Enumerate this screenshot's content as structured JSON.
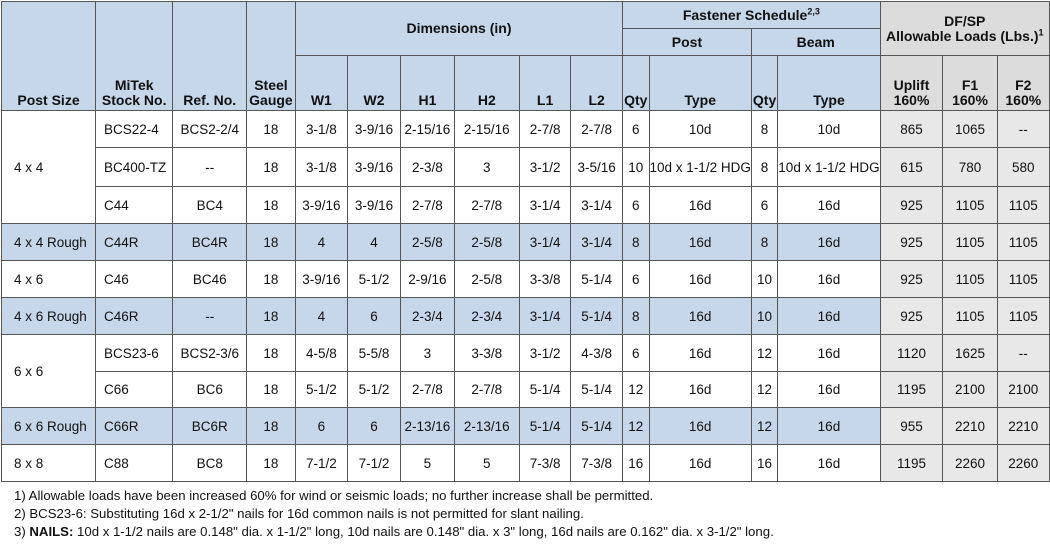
{
  "headers": {
    "post_size": "Post Size",
    "mitek_stock_line1": "MiTek",
    "mitek_stock_line2": "Stock No.",
    "ref_no": "Ref. No.",
    "steel_gauge_line1": "Steel",
    "steel_gauge_line2": "Gauge",
    "dimensions": "Dimensions (in)",
    "fastener_schedule": "Fastener Schedule",
    "fastener_schedule_sup": "2,3",
    "post": "Post",
    "beam": "Beam",
    "dfsp_line1": "DF/SP",
    "dfsp_line2": "Allowable Loads (Lbs.)",
    "dfsp_sup": "1",
    "w1": "W1",
    "w2": "W2",
    "h1": "H1",
    "h2": "H2",
    "l1": "L1",
    "l2": "L2",
    "qty": "Qty",
    "type": "Type",
    "uplift_line1": "Uplift",
    "uplift_line2": "160%",
    "f1_line1": "F1",
    "f1_line2": "160%",
    "f2_line1": "F2",
    "f2_line2": "160%"
  },
  "groups": [
    {
      "post_size": "4 x 4",
      "rows": [
        {
          "stock": "BCS22-4",
          "ref": "BCS2-2/4",
          "gauge": "18",
          "w1": "3-1/8",
          "w2": "3-9/16",
          "h1": "2-15/16",
          "h2": "2-15/16",
          "l1": "2-7/8",
          "l2": "2-7/8",
          "post_qty": "6",
          "post_type": "10d",
          "beam_qty": "8",
          "beam_type": "10d",
          "uplift": "865",
          "f1": "1065",
          "f2": "--"
        },
        {
          "stock": "BC400-TZ",
          "ref": "--",
          "gauge": "18",
          "w1": "3-1/8",
          "w2": "3-9/16",
          "h1": "2-3/8",
          "h2": "3",
          "l1": "3-1/2",
          "l2": "3-5/16",
          "post_qty": "10",
          "post_type": "10d x 1-1/2 HDG",
          "beam_qty": "8",
          "beam_type": "10d x 1-1/2 HDG",
          "uplift": "615",
          "f1": "780",
          "f2": "580"
        },
        {
          "stock": "C44",
          "ref": "BC4",
          "gauge": "18",
          "w1": "3-9/16",
          "w2": "3-9/16",
          "h1": "2-7/8",
          "h2": "2-7/8",
          "l1": "3-1/4",
          "l2": "3-1/4",
          "post_qty": "6",
          "post_type": "16d",
          "beam_qty": "6",
          "beam_type": "16d",
          "uplift": "925",
          "f1": "1105",
          "f2": "1105"
        }
      ]
    },
    {
      "post_size": "4 x 4 Rough",
      "shaded": true,
      "rows": [
        {
          "stock": "C44R",
          "ref": "BC4R",
          "gauge": "18",
          "w1": "4",
          "w2": "4",
          "h1": "2-5/8",
          "h2": "2-5/8",
          "l1": "3-1/4",
          "l2": "3-1/4",
          "post_qty": "8",
          "post_type": "16d",
          "beam_qty": "8",
          "beam_type": "16d",
          "uplift": "925",
          "f1": "1105",
          "f2": "1105"
        }
      ]
    },
    {
      "post_size": "4 x 6",
      "rows": [
        {
          "stock": "C46",
          "ref": "BC46",
          "gauge": "18",
          "w1": "3-9/16",
          "w2": "5-1/2",
          "h1": "2-9/16",
          "h2": "2-5/8",
          "l1": "3-3/8",
          "l2": "5-1/4",
          "post_qty": "6",
          "post_type": "16d",
          "beam_qty": "10",
          "beam_type": "16d",
          "uplift": "925",
          "f1": "1105",
          "f2": "1105"
        }
      ]
    },
    {
      "post_size": "4 x 6 Rough",
      "shaded": true,
      "rows": [
        {
          "stock": "C46R",
          "ref": "--",
          "gauge": "18",
          "w1": "4",
          "w2": "6",
          "h1": "2-3/4",
          "h2": "2-3/4",
          "l1": "3-1/4",
          "l2": "5-1/4",
          "post_qty": "8",
          "post_type": "16d",
          "beam_qty": "10",
          "beam_type": "16d",
          "uplift": "925",
          "f1": "1105",
          "f2": "1105"
        }
      ]
    },
    {
      "post_size": "6 x 6",
      "rows": [
        {
          "stock": "BCS23-6",
          "ref": "BCS2-3/6",
          "gauge": "18",
          "w1": "4-5/8",
          "w2": "5-5/8",
          "h1": "3",
          "h2": "3-3/8",
          "l1": "3-1/2",
          "l2": "4-3/8",
          "post_qty": "6",
          "post_type": "16d",
          "beam_qty": "12",
          "beam_type": "16d",
          "uplift": "1120",
          "f1": "1625",
          "f2": "--"
        },
        {
          "stock": "C66",
          "ref": "BC6",
          "gauge": "18",
          "w1": "5-1/2",
          "w2": "5-1/2",
          "h1": "2-7/8",
          "h2": "2-7/8",
          "l1": "5-1/4",
          "l2": "5-1/4",
          "post_qty": "12",
          "post_type": "16d",
          "beam_qty": "12",
          "beam_type": "16d",
          "uplift": "1195",
          "f1": "2100",
          "f2": "2100"
        }
      ]
    },
    {
      "post_size": "6 x 6 Rough",
      "shaded": true,
      "rows": [
        {
          "stock": "C66R",
          "ref": "BC6R",
          "gauge": "18",
          "w1": "6",
          "w2": "6",
          "h1": "2-13/16",
          "h2": "2-13/16",
          "l1": "5-1/4",
          "l2": "5-1/4",
          "post_qty": "12",
          "post_type": "16d",
          "beam_qty": "12",
          "beam_type": "16d",
          "uplift": "955",
          "f1": "2210",
          "f2": "2210"
        }
      ]
    },
    {
      "post_size": "8 x 8",
      "rows": [
        {
          "stock": "C88",
          "ref": "BC8",
          "gauge": "18",
          "w1": "7-1/2",
          "w2": "7-1/2",
          "h1": "5",
          "h2": "5",
          "l1": "7-3/8",
          "l2": "7-3/8",
          "post_qty": "16",
          "post_type": "16d",
          "beam_qty": "16",
          "beam_type": "16d",
          "uplift": "1195",
          "f1": "2260",
          "f2": "2260"
        }
      ]
    }
  ],
  "notes": {
    "note1": "1) Allowable loads have been increased 60% for wind or seismic loads; no further increase shall be permitted.",
    "note2": "2) BCS23-6: Substituting 16d x 2-1/2\" nails for 16d common nails is not permitted for slant nailing.",
    "note3_prefix": "3) ",
    "note3_label": "NAILS:",
    "note3_text": " 10d x 1-1/2 nails are 0.148\" dia. x 1-1/2\" long, 10d nails are 0.148\" dia. x 3\" long, 16d nails are 0.162\" dia. x 3-1/2\" long."
  },
  "colors": {
    "header_blue": "#c6d7ea",
    "shaded_row_blue": "#c6d7ea",
    "load_gray": "#e8e8e8"
  }
}
